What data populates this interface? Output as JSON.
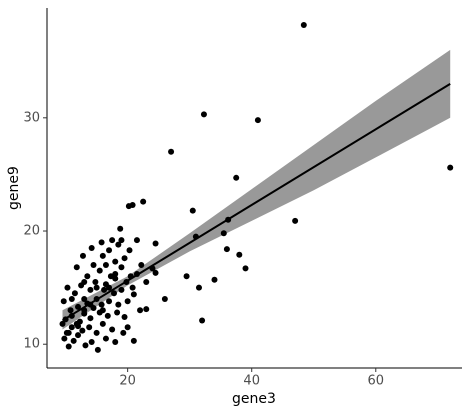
{
  "chart_data": {
    "type": "scatter",
    "x_label": "gene3",
    "y_label": "gene9",
    "xlim": [
      7,
      73.9
    ],
    "ylim": [
      7.9,
      39.7
    ],
    "xticks": [
      20,
      40,
      60
    ],
    "yticks": [
      10,
      20,
      30
    ],
    "color": "#000000",
    "fit_color": "#000000",
    "band_color": "#999999",
    "x": [
      48.4,
      72,
      41,
      32.3,
      27,
      47,
      37.5,
      20.2,
      20.8,
      22.5,
      30.5,
      31,
      35.5,
      36.2,
      36,
      38,
      39,
      34,
      31.5,
      32,
      29.5,
      24,
      24.5,
      26,
      21.5,
      24.5,
      22,
      23,
      21,
      23,
      20,
      21,
      18,
      19.5,
      9.5,
      9.8,
      10,
      10.2,
      10.5,
      10.8,
      11,
      11,
      11.3,
      11.5,
      11.8,
      12,
      12,
      12.3,
      12.5,
      12.7,
      13,
      13,
      13.2,
      13.5,
      13.5,
      13.8,
      14,
      14,
      14.2,
      14.5,
      14.5,
      14.8,
      15,
      15,
      15.2,
      15.5,
      15.5,
      15.8,
      16,
      16,
      16.2,
      16.5,
      16.5,
      16.8,
      17,
      17,
      17.3,
      17.5,
      17.5,
      17.8,
      18,
      18,
      18.3,
      18.5,
      18.5,
      18.8,
      19,
      19,
      19.3,
      19.5,
      19.8,
      20,
      20.3,
      20.5,
      11.8,
      10.3,
      12.8,
      14.2,
      15.8,
      9.7,
      20.8,
      21.5,
      22.2,
      10.5,
      12,
      13,
      14,
      15,
      16,
      17,
      18,
      11,
      13,
      16.5,
      19
    ],
    "y": [
      38.2,
      25.6,
      29.8,
      30.3,
      27,
      20.9,
      24.7,
      22.2,
      22.3,
      22.6,
      21.8,
      19.5,
      19.8,
      21,
      18.4,
      17.9,
      16.7,
      15.7,
      15,
      12.1,
      16,
      16.7,
      16.3,
      14,
      19.2,
      18.9,
      13,
      13.1,
      14.4,
      15.5,
      11.5,
      10.3,
      10.2,
      12.4,
      11.8,
      10.5,
      12.2,
      11,
      9.8,
      13,
      11.5,
      12.5,
      10.3,
      14.5,
      11.8,
      13.3,
      10.8,
      12,
      15.2,
      11.2,
      14,
      12.7,
      9.9,
      13.6,
      16,
      11.5,
      14.8,
      12.3,
      10.2,
      13.2,
      17,
      15.5,
      11,
      14,
      9.5,
      12.8,
      16.5,
      13.5,
      17.8,
      11.8,
      14.8,
      15.3,
      10.5,
      12.5,
      18.3,
      13.8,
      16,
      11.3,
      19.2,
      14.5,
      15.8,
      17.3,
      12.8,
      18.8,
      13.5,
      20.2,
      16.8,
      14.8,
      11,
      17.6,
      15.5,
      13.8,
      18.3,
      16,
      16.8,
      15,
      17.8,
      18.5,
      19,
      13.8,
      15,
      16.2,
      17,
      11,
      11.6,
      13,
      13.5,
      15,
      13,
      15,
      16.2,
      14,
      15.5,
      17,
      19.2
    ],
    "fit": {
      "x": [
        9.5,
        72
      ],
      "y": [
        12.1,
        33
      ]
    },
    "band": {
      "x": [
        9.5,
        20,
        30,
        40,
        50,
        60,
        72
      ],
      "lower": [
        11.3,
        15.2,
        18.2,
        20.9,
        23.6,
        26.5,
        30
      ],
      "upper": [
        13,
        16,
        19.8,
        23.7,
        27.6,
        31.5,
        36
      ]
    }
  }
}
